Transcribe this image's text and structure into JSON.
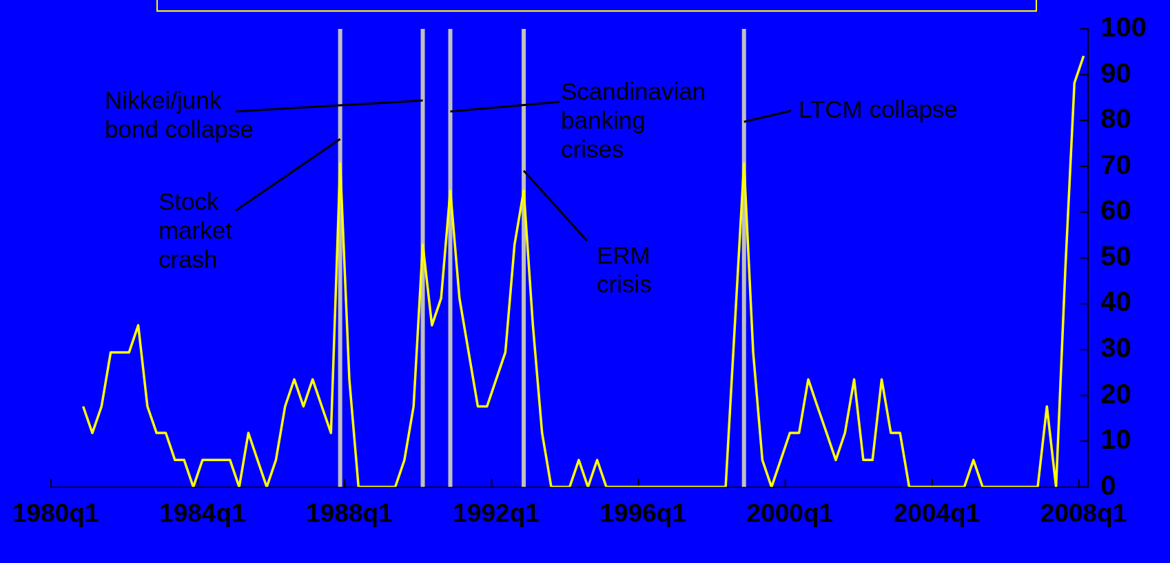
{
  "chart_data": {
    "type": "line",
    "categories": [
      "1980q1",
      null,
      null,
      null,
      null,
      null,
      null,
      null,
      null,
      null,
      null,
      null,
      null,
      null,
      null,
      null,
      "1984q1",
      null,
      null,
      null,
      null,
      null,
      null,
      null,
      null,
      null,
      null,
      null,
      null,
      null,
      null,
      null,
      "1988q1",
      null,
      null,
      null,
      null,
      null,
      null,
      null,
      null,
      null,
      null,
      null,
      null,
      null,
      null,
      null,
      "1992q1",
      null,
      null,
      null,
      null,
      null,
      null,
      null,
      null,
      null,
      null,
      null,
      null,
      null,
      null,
      null,
      "1996q1",
      null,
      null,
      null,
      null,
      null,
      null,
      null,
      null,
      null,
      null,
      null,
      null,
      null,
      null,
      null,
      "2000q1",
      null,
      null,
      null,
      null,
      null,
      null,
      null,
      null,
      null,
      null,
      null,
      null,
      null,
      null,
      null,
      "2004q1",
      null,
      null,
      null,
      null,
      null,
      null,
      null,
      null,
      null,
      null,
      null,
      null,
      null,
      null,
      null,
      "2008q1"
    ],
    "series": [
      {
        "color": "#ffff00",
        "values": [
          null,
          null,
          null,
          17.6,
          11.8,
          17.6,
          29.4,
          29.4,
          29.4,
          35.3,
          17.6,
          11.8,
          11.8,
          5.9,
          5.9,
          0,
          5.9,
          5.9,
          5.9,
          5.9,
          0,
          11.8,
          5.9,
          0,
          5.9,
          17.6,
          23.5,
          17.6,
          23.5,
          17.6,
          11.8,
          70.6,
          23.5,
          0,
          0,
          0,
          0,
          0,
          5.9,
          17.6,
          52.9,
          35.3,
          41.2,
          64.7,
          41.2,
          29.4,
          17.6,
          17.6,
          23.5,
          29.4,
          52.9,
          64.7,
          35.3,
          11.8,
          0,
          0,
          0,
          5.9,
          0,
          5.9,
          0,
          0,
          0,
          0,
          0,
          0,
          0,
          0,
          0,
          0,
          0,
          0,
          0,
          0,
          35.3,
          70.6,
          29.4,
          5.9,
          0,
          5.9,
          11.8,
          11.8,
          23.5,
          17.6,
          11.8,
          5.9,
          11.8,
          23.5,
          5.9,
          5.9,
          23.5,
          11.8,
          11.8,
          0,
          0,
          0,
          0,
          0,
          0,
          0,
          5.9,
          0,
          0,
          0,
          0,
          0,
          0,
          0,
          17.6,
          0,
          47.1,
          88.2,
          94.1
        ]
      }
    ],
    "ylim": [
      0,
      100
    ],
    "yticks": [
      0,
      10,
      20,
      30,
      40,
      50,
      60,
      70,
      80,
      90,
      100
    ],
    "annotations": [
      "Stock market crash",
      "Nikkei/junk bond collapse",
      "Scandinavian banking crises",
      "ERM crisis",
      "LTCM collapse"
    ],
    "grid": false,
    "legend": false,
    "marker": "none",
    "line_style": "solid"
  }
}
